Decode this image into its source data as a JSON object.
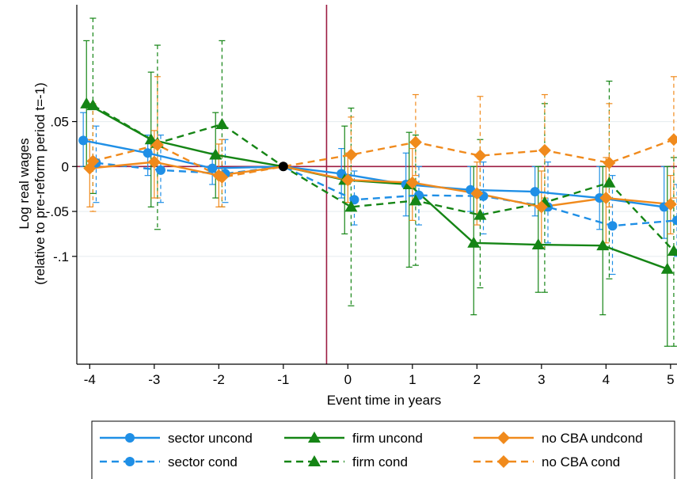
{
  "chart_data": {
    "type": "line",
    "title": "",
    "xlabel": "Event time in years",
    "ylabel": [
      "Log real wages",
      "(relative to pre-reform period t=-1)"
    ],
    "xlim": [
      -4.2,
      5.1
    ],
    "ylim": [
      -0.22,
      0.18
    ],
    "xticks": [
      -4,
      -3,
      -2,
      -1,
      0,
      1,
      2,
      3,
      4,
      5
    ],
    "xtick_labels": [
      "-4",
      "-3",
      "-2",
      "-1",
      "0",
      "1",
      "2",
      "3",
      "4",
      "5"
    ],
    "yticks": [
      0.05,
      0,
      -0.05,
      -0.1
    ],
    "ytick_labels": [
      ".05",
      "0",
      "-.05",
      "-.1"
    ],
    "grid": true,
    "reference_lines": {
      "vertical_x": -0.33,
      "horizontal_y": 0
    },
    "anchor_point": {
      "x": -1,
      "y": 0
    },
    "legend_position": "bottom",
    "series": [
      {
        "name": "sector uncond",
        "color": "#1f8fe6",
        "dash": false,
        "marker": "circle",
        "x": [
          -4.1,
          -3.1,
          -2.1,
          -1,
          -0.1,
          0.9,
          1.9,
          2.9,
          3.9,
          4.9
        ],
        "y": [
          0.029,
          0.015,
          -0.002,
          0.0,
          -0.008,
          -0.02,
          -0.026,
          -0.028,
          -0.035,
          -0.045
        ],
        "ci_low": [
          0.0,
          -0.01,
          -0.02,
          0.0,
          -0.035,
          -0.055,
          -0.05,
          -0.055,
          -0.07,
          -0.08
        ],
        "ci_high": [
          0.06,
          0.035,
          0.015,
          0.0,
          0.02,
          0.015,
          0.0,
          0.0,
          0.0,
          0.0
        ]
      },
      {
        "name": "sector cond",
        "color": "#1f8fe6",
        "dash": true,
        "marker": "circle",
        "x": [
          -3.9,
          -2.9,
          -1.9,
          -1,
          0.1,
          1.1,
          2.1,
          3.1,
          4.1,
          5.1
        ],
        "y": [
          0.004,
          -0.004,
          -0.008,
          0.0,
          -0.037,
          -0.032,
          -0.033,
          -0.045,
          -0.066,
          -0.06
        ],
        "ci_low": [
          -0.04,
          -0.04,
          -0.04,
          0.0,
          -0.065,
          -0.065,
          -0.075,
          -0.085,
          -0.12,
          -0.1
        ],
        "ci_high": [
          0.045,
          0.035,
          0.03,
          0.0,
          -0.005,
          0.0,
          0.005,
          0.005,
          -0.01,
          -0.02
        ]
      },
      {
        "name": "firm uncond",
        "color": "#158515",
        "dash": false,
        "marker": "triangle",
        "x": [
          -4.05,
          -3.05,
          -2.05,
          -1,
          -0.05,
          0.95,
          1.95,
          2.95,
          3.95,
          4.95
        ],
        "y": [
          0.07,
          0.03,
          0.013,
          0.0,
          -0.015,
          -0.02,
          -0.085,
          -0.087,
          -0.088,
          -0.114
        ],
        "ci_low": [
          0.0,
          -0.045,
          -0.035,
          0.0,
          -0.075,
          -0.112,
          -0.165,
          -0.14,
          -0.165,
          -0.2
        ],
        "ci_high": [
          0.14,
          0.105,
          0.06,
          0.0,
          0.045,
          0.038,
          0.0,
          0.0,
          0.0,
          0.0
        ]
      },
      {
        "name": "firm cond",
        "color": "#158515",
        "dash": true,
        "marker": "triangle",
        "x": [
          -3.95,
          -2.95,
          -1.95,
          -1,
          0.05,
          1.05,
          2.05,
          3.05,
          4.05,
          5.05
        ],
        "y": [
          0.068,
          0.026,
          0.047,
          0.0,
          -0.045,
          -0.038,
          -0.054,
          -0.04,
          -0.018,
          -0.094
        ],
        "ci_low": [
          -0.03,
          -0.07,
          -0.045,
          0.0,
          -0.155,
          -0.11,
          -0.135,
          -0.14,
          -0.125,
          -0.2
        ],
        "ci_high": [
          0.165,
          0.135,
          0.14,
          0.0,
          0.065,
          0.035,
          0.03,
          0.07,
          0.095,
          0.01
        ]
      },
      {
        "name": "no CBA undcond",
        "color": "#f08a1c",
        "dash": false,
        "marker": "diamond",
        "x": [
          -4.0,
          -3.0,
          -2.0,
          -1,
          0.0,
          1.0,
          2.0,
          3.0,
          4.0,
          5.0
        ],
        "y": [
          -0.002,
          0.005,
          -0.01,
          0.0,
          -0.015,
          -0.018,
          -0.03,
          -0.045,
          -0.035,
          -0.042
        ],
        "ci_low": [
          -0.045,
          -0.035,
          -0.045,
          0.0,
          -0.04,
          -0.06,
          -0.065,
          -0.09,
          -0.085,
          -0.075
        ],
        "ci_high": [
          0.03,
          0.04,
          0.025,
          0.0,
          0.015,
          0.02,
          0.005,
          -0.005,
          0.01,
          -0.01
        ]
      },
      {
        "name": "no CBA cond",
        "color": "#f08a1c",
        "dash": true,
        "marker": "diamond",
        "x": [
          -3.95,
          -2.95,
          -1.95,
          -1,
          0.05,
          1.05,
          2.05,
          3.05,
          4.05,
          5.05
        ],
        "y": [
          0.006,
          0.024,
          -0.012,
          0.0,
          0.013,
          0.027,
          0.012,
          0.018,
          0.004,
          0.03
        ],
        "ci_low": [
          -0.05,
          -0.035,
          -0.045,
          0.0,
          -0.015,
          -0.01,
          -0.035,
          -0.035,
          -0.045,
          -0.035
        ],
        "ci_high": [
          0.07,
          0.1,
          0.03,
          0.0,
          0.055,
          0.08,
          0.078,
          0.08,
          0.07,
          0.1
        ]
      }
    ]
  }
}
